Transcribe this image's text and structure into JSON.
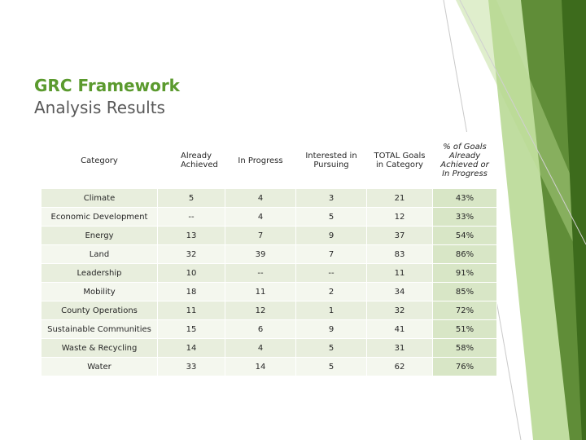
{
  "slide": {
    "title_line1": "GRC Framework",
    "title_line2": "Analysis Results"
  },
  "table": {
    "headers": {
      "category": "Category",
      "achieved": "Already Achieved",
      "in_progress": "In Progress",
      "interested": "Interested in Pursuing",
      "total": "TOTAL Goals in Category",
      "pct": "% of Goals Already Achieved or In Progress"
    },
    "rows": [
      {
        "category": "Climate",
        "achieved": "5",
        "in_progress": "4",
        "interested": "3",
        "total": "21",
        "pct": "43%"
      },
      {
        "category": "Economic Development",
        "achieved": "--",
        "in_progress": "4",
        "interested": "5",
        "total": "12",
        "pct": "33%"
      },
      {
        "category": "Energy",
        "achieved": "13",
        "in_progress": "7",
        "interested": "9",
        "total": "37",
        "pct": "54%"
      },
      {
        "category": "Land",
        "achieved": "32",
        "in_progress": "39",
        "interested": "7",
        "total": "83",
        "pct": "86%"
      },
      {
        "category": "Leadership",
        "achieved": "10",
        "in_progress": "--",
        "interested": "--",
        "total": "11",
        "pct": "91%"
      },
      {
        "category": "Mobility",
        "achieved": "18",
        "in_progress": "11",
        "interested": "2",
        "total": "34",
        "pct": "85%"
      },
      {
        "category": "County Operations",
        "achieved": "11",
        "in_progress": "12",
        "interested": "1",
        "total": "32",
        "pct": "72%"
      },
      {
        "category": "Sustainable Communities",
        "achieved": "15",
        "in_progress": "6",
        "interested": "9",
        "total": "41",
        "pct": "51%"
      },
      {
        "category": "Waste & Recycling",
        "achieved": "14",
        "in_progress": "4",
        "interested": "5",
        "total": "31",
        "pct": "58%"
      },
      {
        "category": "Water",
        "achieved": "33",
        "in_progress": "14",
        "interested": "5",
        "total": "62",
        "pct": "76%"
      }
    ]
  },
  "colors": {
    "accent_green": "#5b9a2e",
    "dark_green": "#4f7f26",
    "light_green": "#8cc152"
  }
}
